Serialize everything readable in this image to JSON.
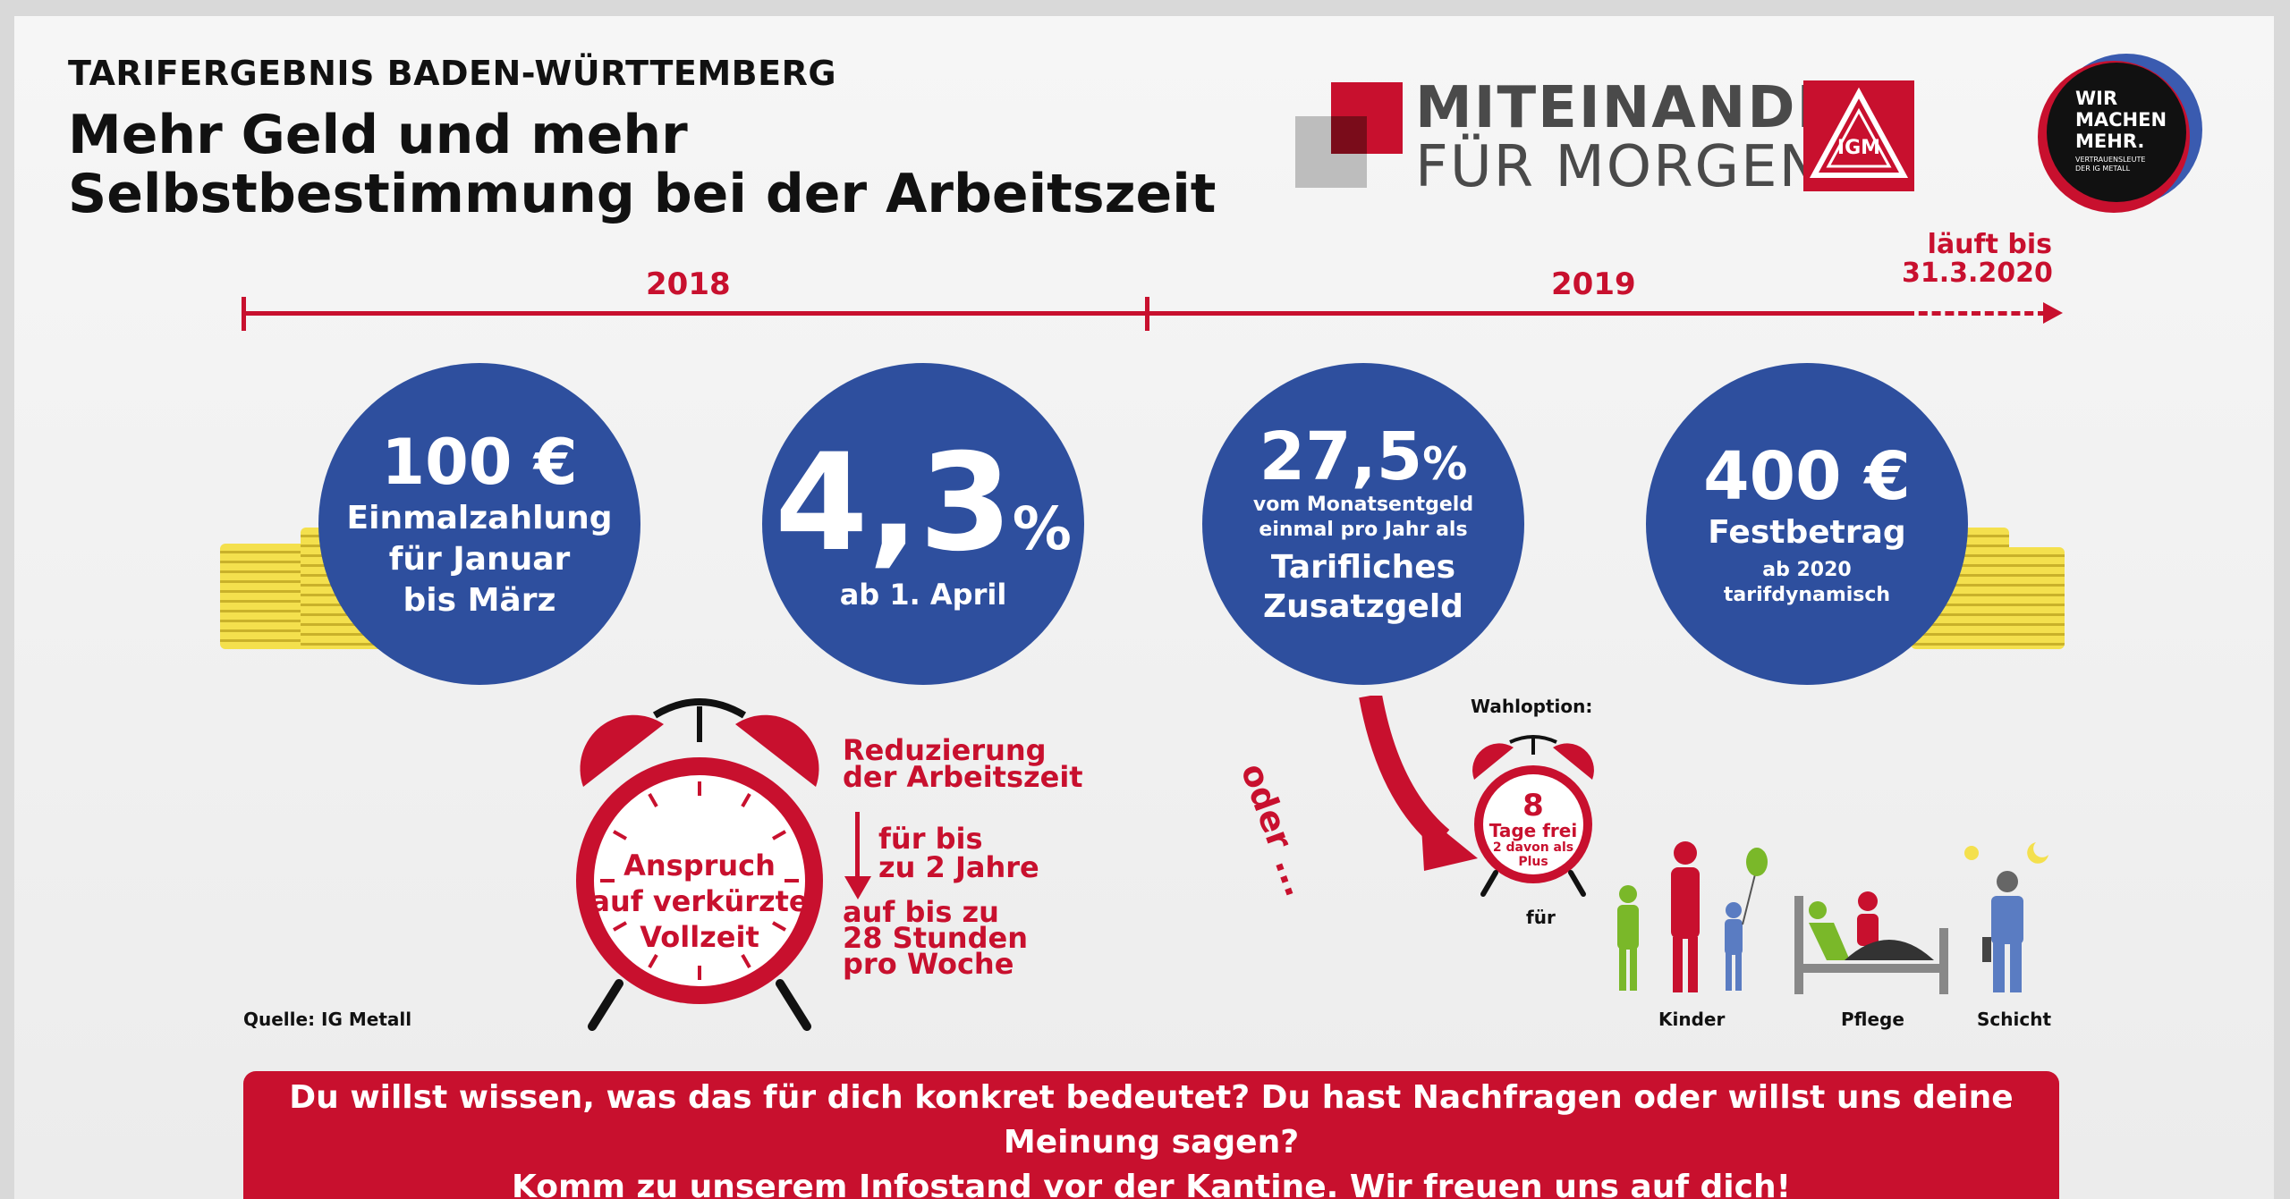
{
  "header": {
    "kicker": "TARIFERGEBNIS BADEN-WÜRTTEMBERG",
    "headline_line1": "Mehr Geld und mehr",
    "headline_line2": "Selbstbestimmung bei der Arbeitszeit"
  },
  "logo": {
    "line1": "MITEINANDER",
    "line2": "FÜR MORGEN",
    "ig_text": "IGM"
  },
  "badge": {
    "line1": "WIR",
    "line2": "MACHEN",
    "line3": "MEHR.",
    "sub1": "VERTRAUENSLEUTE",
    "sub2": "DER IG METALL"
  },
  "timeline": {
    "year1": "2018",
    "year2": "2019",
    "end_line1": "läuft bis",
    "end_line2": "31.3.2020"
  },
  "circles": [
    {
      "big": "100 €",
      "lines": [
        "Einmalzahlung",
        "für Januar",
        "bis März"
      ]
    },
    {
      "big": "4,3",
      "big_suffix": "%",
      "lines": [
        "ab 1. April"
      ]
    },
    {
      "big": "27,5",
      "big_suffix": "%",
      "small_lines": [
        "vom Monatsentgeld",
        "einmal pro Jahr als"
      ],
      "lines": [
        "Tarifliches",
        "Zusatzgeld"
      ]
    },
    {
      "big": "400 €",
      "lines": [
        "Festbetrag"
      ],
      "small_lines": [
        "ab 2020",
        "tarifdynamisch"
      ]
    }
  ],
  "clock_big": {
    "line1": "Anspruch",
    "line2": "auf verkürzte",
    "line3": "Vollzeit"
  },
  "reduction": {
    "title1": "Reduzierung",
    "title2": "der Arbeitszeit",
    "mid1": "für bis",
    "mid2": "zu 2 Jahre",
    "bottom1": "auf bis zu",
    "bottom2": "28 Stunden",
    "bottom3": "pro Woche"
  },
  "option": {
    "oder": "oder ...",
    "wahl": "Wahloption:",
    "days": "8",
    "days_label": "Tage frei",
    "plus1": "2 davon als",
    "plus2": "Plus",
    "fuer": "für",
    "kinder": "Kinder",
    "pflege": "Pflege",
    "schicht": "Schicht"
  },
  "source": "Quelle: IG Metall",
  "banner": {
    "line1": "Du willst wissen, was das für dich konkret bedeutet? Du hast Nachfragen oder willst uns deine Meinung sagen?",
    "line2": "Komm zu unserem Infostand vor der Kantine. Wir freuen uns auf dich!"
  },
  "colors": {
    "red": "#c8102e",
    "blue": "#2e4f9e",
    "coin": "#f4e04d"
  }
}
